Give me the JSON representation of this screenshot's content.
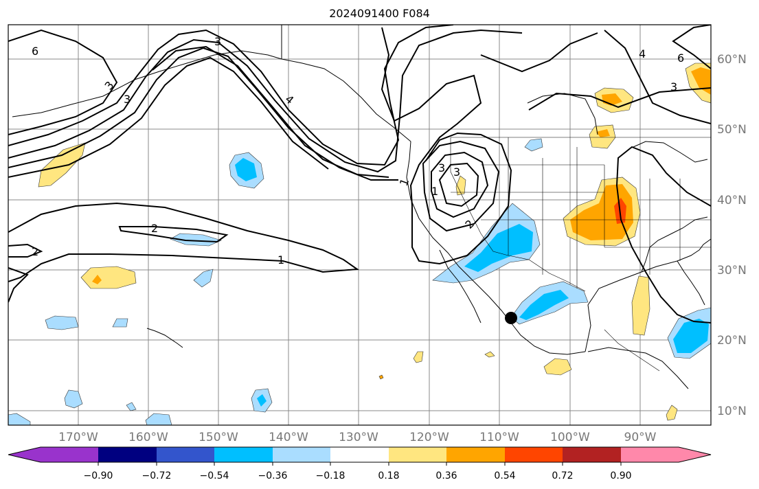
{
  "title": "2024091400 F084",
  "map": {
    "lon_labels": [
      "170°W",
      "160°W",
      "150°W",
      "140°W",
      "130°W",
      "120°W",
      "110°W",
      "100°W",
      "90°W"
    ],
    "lat_labels": [
      "60°N",
      "50°N",
      "40°N",
      "30°N",
      "20°N",
      "10°N"
    ],
    "lon_range": [
      -180,
      -80
    ],
    "lat_range": [
      8,
      65
    ],
    "contour_labels": [
      "6",
      "4",
      "3",
      "3",
      "6",
      "4",
      "3",
      "3",
      "1",
      "2",
      "1",
      "2",
      "3",
      "2",
      "1",
      "3"
    ],
    "marker": {
      "lon": -108.5,
      "lat": 23.2
    }
  },
  "colorbar": {
    "ticks": [
      "−0.90",
      "−0.72",
      "−0.54",
      "−0.36",
      "−0.18",
      "0.18",
      "0.36",
      "0.54",
      "0.72",
      "0.90"
    ],
    "colors": [
      "#9933cc",
      "#000080",
      "#3355cc",
      "#00bfff",
      "#aaddff",
      "#ffffff",
      "#ffe680",
      "#ffa500",
      "#ff4500",
      "#b22222",
      "#ff88aa"
    ]
  }
}
